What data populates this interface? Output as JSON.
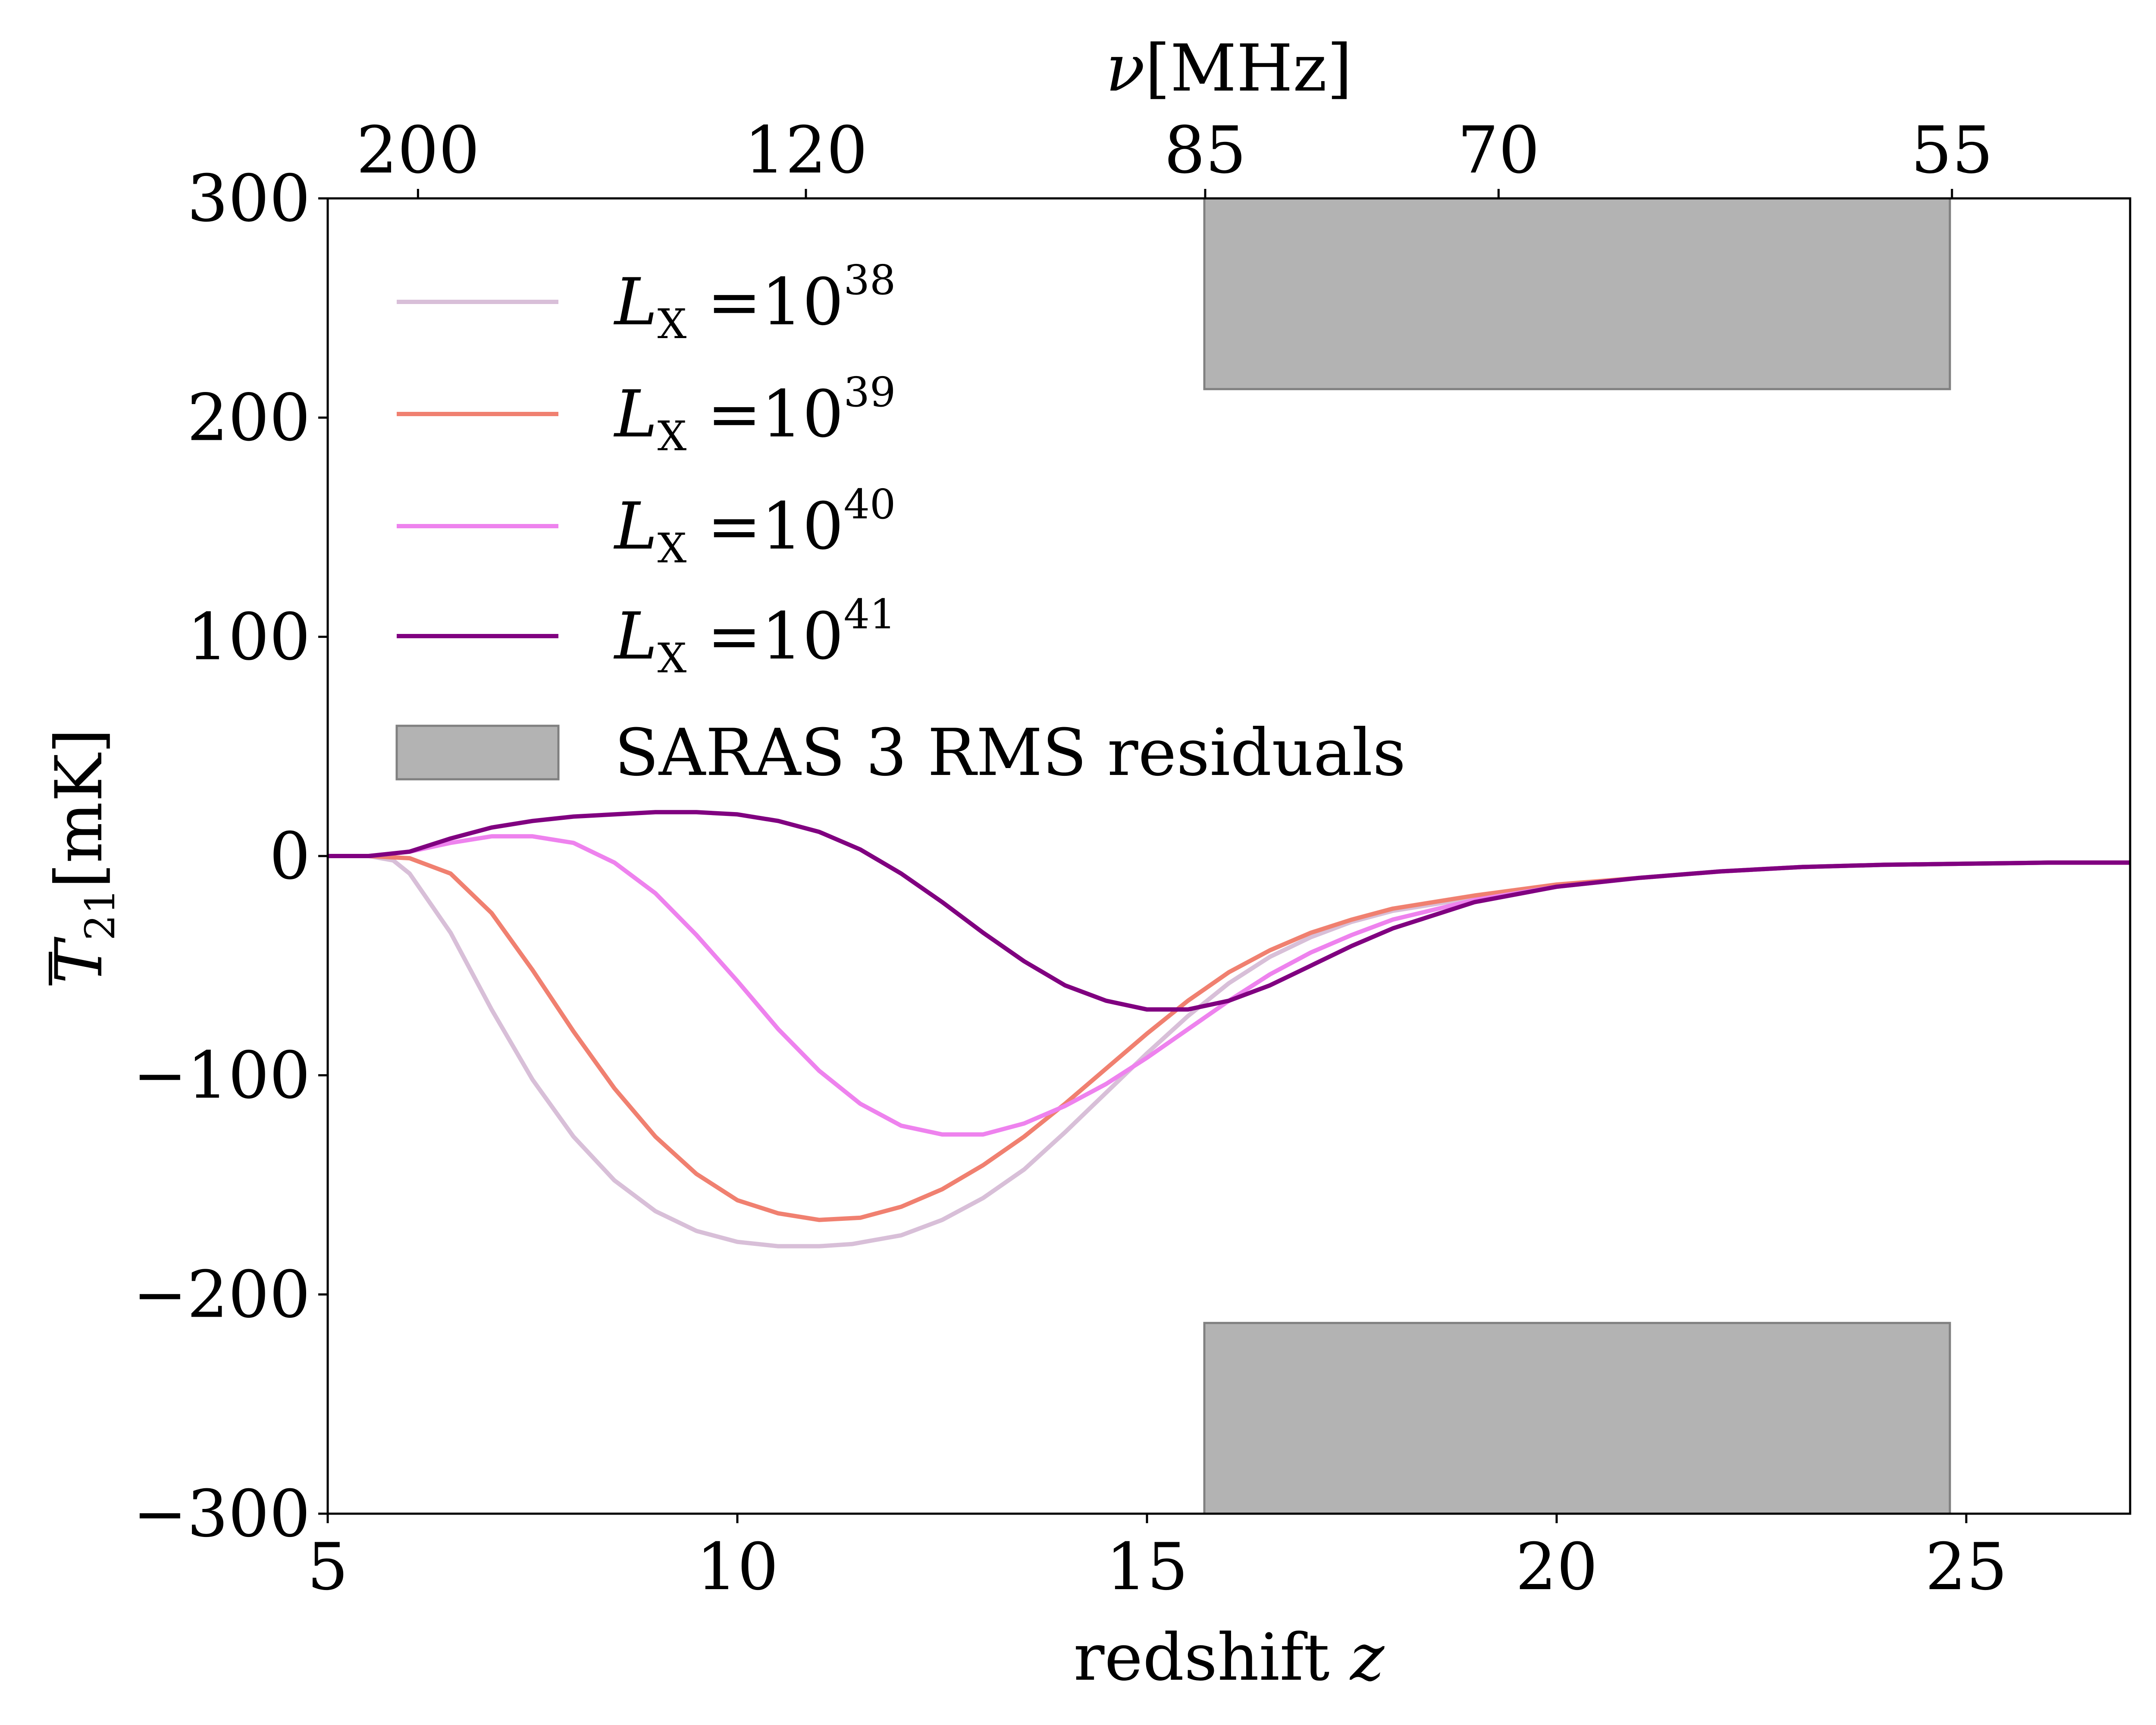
{
  "chart_data": {
    "type": "line",
    "xlabel": "redshift",
    "xlabel_var": "z",
    "ylabel": "T",
    "ylabel_sub": "21",
    "ylabel_unit": "[mK]",
    "top_axis_var": "ν",
    "top_axis_unit": "[MHz]",
    "xlim": [
      5,
      27
    ],
    "ylim": [
      -300,
      300
    ],
    "x_ticks": [
      "5",
      "10",
      "15",
      "20",
      "25"
    ],
    "y_ticks": [
      "300",
      "200",
      "100",
      "0",
      "−100",
      "−200",
      "−300"
    ],
    "top_ticks": [
      {
        "label": "200",
        "nu": 200
      },
      {
        "label": "120",
        "nu": 120
      },
      {
        "label": "85",
        "nu": 85
      },
      {
        "label": "70",
        "nu": 70
      },
      {
        "label": "55",
        "nu": 55
      }
    ],
    "grid": false,
    "legend_position": "upper-left",
    "bands": [
      {
        "name": "SARAS 3 RMS residuals",
        "x": [
          15.7,
          24.8
        ],
        "y": [
          213,
          300
        ],
        "color": "#b3b3b3"
      },
      {
        "name": "",
        "x": [
          15.7,
          24.8
        ],
        "y": [
          -300,
          -213
        ],
        "color": "#b3b3b3"
      }
    ],
    "series": [
      {
        "name": "L_X =10^38",
        "label_base": "L",
        "label_sub": "X",
        "label_eq": " =10",
        "label_exp": "38",
        "color": "#d8bfd8",
        "x": [
          5,
          5.5,
          5.8,
          6.0,
          6.5,
          7,
          7.5,
          8,
          8.5,
          9,
          9.5,
          10,
          10.5,
          11,
          11.4,
          12,
          12.5,
          13,
          13.5,
          14,
          14.5,
          15,
          15.5,
          16,
          16.5,
          17,
          17.5,
          18,
          19,
          20,
          21,
          22,
          23,
          24,
          25,
          26,
          27
        ],
        "y": [
          0,
          0,
          -2,
          -8,
          -35,
          -70,
          -102,
          -128,
          -148,
          -162,
          -171,
          -176,
          -178,
          -178,
          -177,
          -173,
          -166,
          -156,
          -143,
          -126,
          -108,
          -90,
          -73,
          -58,
          -46,
          -37,
          -30,
          -25,
          -19,
          -14,
          -10,
          -7,
          -5,
          -4,
          -3.5,
          -3,
          -3
        ]
      },
      {
        "name": "L_X =10^39",
        "label_base": "L",
        "label_sub": "X",
        "label_eq": " =10",
        "label_exp": "39",
        "color": "#f08070",
        "x": [
          5,
          5.5,
          6,
          6.5,
          7,
          7.5,
          8,
          8.5,
          9,
          9.5,
          10,
          10.5,
          11,
          11.5,
          12,
          12.5,
          13,
          13.5,
          14,
          14.5,
          15,
          15.5,
          16,
          16.5,
          17,
          17.5,
          18,
          19,
          20,
          21,
          22,
          23,
          24,
          25,
          26,
          27
        ],
        "y": [
          0,
          0,
          -1,
          -8,
          -26,
          -52,
          -80,
          -106,
          -128,
          -145,
          -157,
          -163,
          -166,
          -165,
          -160,
          -152,
          -141,
          -128,
          -113,
          -97,
          -81,
          -66,
          -53,
          -43,
          -35,
          -29,
          -24,
          -18,
          -13,
          -10,
          -7,
          -5,
          -4,
          -3.5,
          -3,
          -3
        ]
      },
      {
        "name": "L_X =10^40",
        "label_base": "L",
        "label_sub": "X",
        "label_eq": " =10",
        "label_exp": "40",
        "color": "#ee82ee",
        "x": [
          5,
          5.5,
          6,
          6.5,
          7,
          7.5,
          8,
          8.5,
          9,
          9.5,
          10,
          10.5,
          11,
          11.5,
          12,
          12.5,
          13,
          13.5,
          14,
          14.5,
          15,
          15.5,
          16,
          16.5,
          17,
          17.5,
          18,
          19,
          20,
          21,
          22,
          23,
          24,
          25,
          26,
          27
        ],
        "y": [
          0,
          0,
          2,
          6,
          9,
          9,
          6,
          -3,
          -17,
          -36,
          -57,
          -79,
          -98,
          -113,
          -123,
          -127,
          -127,
          -122,
          -114,
          -104,
          -92,
          -79,
          -66,
          -54,
          -44,
          -36,
          -29,
          -20,
          -14,
          -10,
          -7,
          -5,
          -4,
          -3.5,
          -3,
          -3
        ]
      },
      {
        "name": "L_X =10^41",
        "label_base": "L",
        "label_sub": "X",
        "label_eq": " =10",
        "label_exp": "41",
        "color": "#800080",
        "x": [
          5,
          5.5,
          6,
          6.5,
          7,
          7.5,
          8,
          8.5,
          9,
          9.5,
          10,
          10.5,
          11,
          11.5,
          12,
          12.5,
          13,
          13.5,
          14,
          14.5,
          15,
          15.5,
          16,
          16.5,
          17,
          17.5,
          18,
          19,
          20,
          21,
          22,
          23,
          24,
          25,
          26,
          27
        ],
        "y": [
          0,
          0,
          2,
          8,
          13,
          16,
          18,
          19,
          20,
          20,
          19,
          16,
          11,
          3,
          -8,
          -21,
          -35,
          -48,
          -59,
          -66,
          -70,
          -70,
          -66,
          -59,
          -50,
          -41,
          -33,
          -21,
          -14,
          -10,
          -7,
          -5,
          -4,
          -3.5,
          -3,
          -3
        ]
      }
    ]
  }
}
